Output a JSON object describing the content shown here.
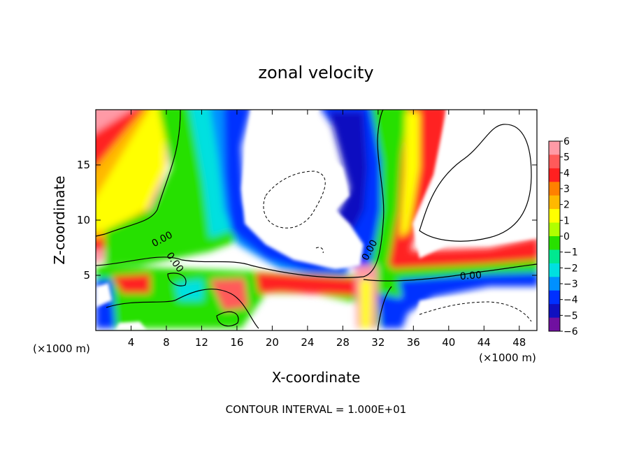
{
  "chart_data": {
    "type": "heatmap",
    "title": "zonal velocity",
    "xlabel": "X-coordinate",
    "ylabel": "Z-coordinate",
    "x_units_note_left": "(×1000 m)",
    "x_units_note_right": "(×1000 m)",
    "xlim": [
      0,
      50
    ],
    "ylim": [
      0,
      20
    ],
    "x_ticks": [
      4,
      8,
      12,
      16,
      20,
      24,
      28,
      32,
      36,
      40,
      44,
      48
    ],
    "y_ticks": [
      5,
      10,
      15
    ],
    "colorbar": {
      "ticks": [
        6,
        5,
        4,
        3,
        2,
        1,
        0,
        -1,
        -2,
        -3,
        -4,
        -5,
        -6
      ],
      "tick_labels": [
        "6",
        "5",
        "4",
        "3",
        "2",
        "1",
        "0",
        "−1",
        "−2",
        "−3",
        "−4",
        "−5",
        "−6"
      ],
      "colors": [
        "#ff9aa6",
        "#ff5a5a",
        "#ff2020",
        "#ff8000",
        "#ffb800",
        "#ffff00",
        "#b0ff00",
        "#28e000",
        "#00e890",
        "#00e0e0",
        "#0090ff",
        "#0030ff",
        "#1010c0",
        "#7010a0"
      ]
    },
    "contour_labels": [
      {
        "text": "0.00",
        "x": 7.5,
        "z": 8.3,
        "angle": -28
      },
      {
        "text": "0.00",
        "x": 9.0,
        "z": 6.2,
        "angle": 55
      },
      {
        "text": "0.00",
        "x": 31.0,
        "z": 7.3,
        "angle": -62
      },
      {
        "text": "0.00",
        "x": 42.5,
        "z": 5.0,
        "angle": -4
      }
    ],
    "footer": "CONTOUR INTERVAL = 1.000E+01"
  }
}
